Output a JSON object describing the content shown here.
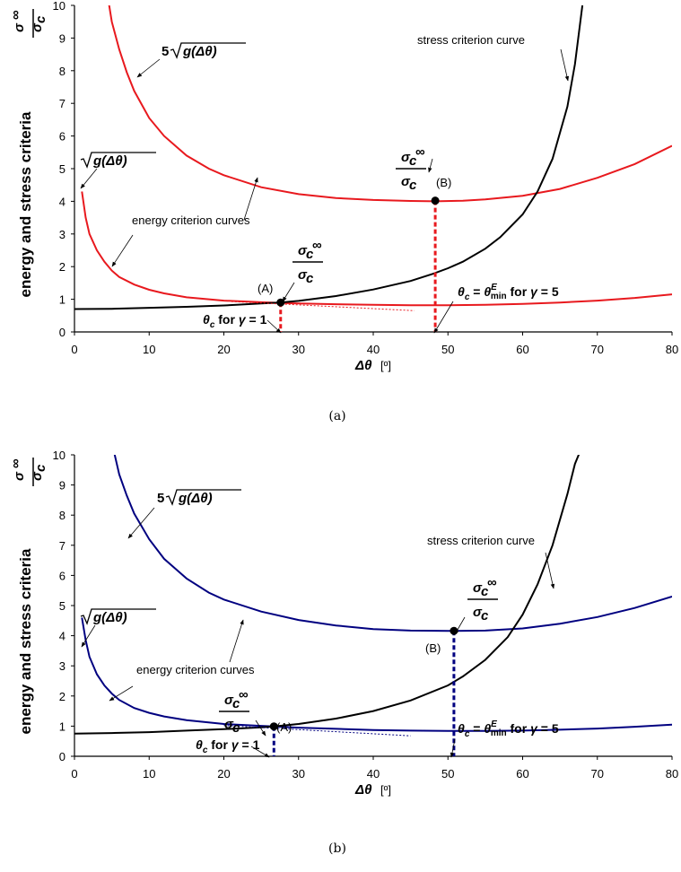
{
  "chart_data": [
    {
      "id": "a",
      "type": "line",
      "caption": "(a)",
      "xlabel": "Δθ",
      "xlabel_unit": "[º]",
      "ylabel": "energy and stress criteria",
      "ylabel_fraction": {
        "numerator": "σ",
        "denominator": "σc",
        "superscript": "∞"
      },
      "xlim": [
        0,
        80
      ],
      "ylim": [
        0,
        10
      ],
      "xticks": [
        0,
        10,
        20,
        30,
        40,
        50,
        60,
        70,
        80
      ],
      "yticks": [
        0,
        1,
        2,
        3,
        4,
        5,
        6,
        7,
        8,
        9,
        10
      ],
      "grid": false,
      "colors": {
        "energy": "#e8191e",
        "stress": "#000000",
        "dropline": "#e8191e"
      },
      "series": [
        {
          "key": "energy_high",
          "x": [
            4.5,
            5,
            6,
            7,
            8,
            10,
            12,
            15,
            18,
            20,
            25,
            30,
            35,
            40,
            45,
            48.3,
            52,
            55,
            60,
            65,
            70,
            75,
            80
          ],
          "y": [
            10.2,
            9.5,
            8.65,
            7.95,
            7.38,
            6.55,
            6.0,
            5.4,
            5.0,
            4.8,
            4.43,
            4.22,
            4.1,
            4.04,
            4.01,
            4.0,
            4.02,
            4.06,
            4.17,
            4.38,
            4.72,
            5.14,
            5.7
          ]
        },
        {
          "key": "energy_low",
          "x": [
            1,
            1.5,
            2,
            3,
            4,
            5,
            6,
            8,
            10,
            12,
            15,
            20,
            25,
            27.5,
            30,
            35,
            40,
            45,
            50,
            55,
            60,
            65,
            70,
            75,
            80
          ],
          "y": [
            4.3,
            3.5,
            3.0,
            2.5,
            2.15,
            1.88,
            1.68,
            1.45,
            1.29,
            1.18,
            1.06,
            0.96,
            0.91,
            0.89,
            0.87,
            0.85,
            0.83,
            0.82,
            0.82,
            0.83,
            0.86,
            0.9,
            0.96,
            1.04,
            1.15
          ]
        },
        {
          "key": "stress",
          "x": [
            0,
            5,
            10,
            15,
            20,
            25,
            27.5,
            30,
            35,
            40,
            45,
            48,
            50,
            52,
            55,
            57,
            60,
            62,
            64,
            66,
            67,
            68
          ],
          "y": [
            0.7,
            0.71,
            0.74,
            0.77,
            0.81,
            0.87,
            0.9,
            0.95,
            1.1,
            1.3,
            1.56,
            1.78,
            1.95,
            2.15,
            2.55,
            2.9,
            3.6,
            4.3,
            5.3,
            6.9,
            8.2,
            10
          ]
        },
        {
          "key": "tangent",
          "x": [
            21,
            45.5
          ],
          "y": [
            0.93,
            0.65
          ]
        }
      ],
      "points": [
        {
          "label": "(A)",
          "x": 27.6,
          "y": 0.9
        },
        {
          "label": "(B)",
          "x": 48.3,
          "y": 4.02
        }
      ],
      "annotations": {
        "stress_curve": "stress criterion curve",
        "energy_curves": "energy criterion curves",
        "five_g": "5√g(Δθ)",
        "sqrt_g": "√g(Δθ)",
        "theta_gamma1": "θc for γ = 1",
        "theta_gamma5": "θc = θminE for γ = 5",
        "ratio": "σc∞/σc"
      }
    },
    {
      "id": "b",
      "type": "line",
      "caption": "(b)",
      "xlabel": "Δθ",
      "xlabel_unit": "[º]",
      "ylabel": "energy and stress criteria",
      "ylabel_fraction": {
        "numerator": "σ",
        "denominator": "σc",
        "superscript": "∞"
      },
      "xlim": [
        0,
        80
      ],
      "ylim": [
        0,
        10
      ],
      "xticks": [
        0,
        10,
        20,
        30,
        40,
        50,
        60,
        70,
        80
      ],
      "yticks": [
        0,
        1,
        2,
        3,
        4,
        5,
        6,
        7,
        8,
        9,
        10
      ],
      "grid": false,
      "colors": {
        "energy": "#000080",
        "stress": "#000000",
        "dropline": "#000080"
      },
      "series": [
        {
          "key": "energy_high",
          "x": [
            5.2,
            6,
            7,
            8,
            10,
            12,
            15,
            18,
            20,
            25,
            30,
            35,
            40,
            45,
            50,
            51,
            55,
            60,
            65,
            70,
            75,
            80
          ],
          "y": [
            10.2,
            9.35,
            8.65,
            8.05,
            7.2,
            6.55,
            5.9,
            5.43,
            5.2,
            4.8,
            4.52,
            4.34,
            4.22,
            4.17,
            4.16,
            4.16,
            4.17,
            4.24,
            4.4,
            4.62,
            4.92,
            5.3
          ]
        },
        {
          "key": "energy_low",
          "x": [
            1,
            1.5,
            2,
            3,
            4,
            5,
            6,
            8,
            10,
            12,
            15,
            20,
            25,
            26.7,
            30,
            35,
            40,
            45,
            50,
            55,
            60,
            65,
            70,
            75,
            80
          ],
          "y": [
            4.6,
            3.85,
            3.3,
            2.72,
            2.35,
            2.08,
            1.87,
            1.6,
            1.44,
            1.32,
            1.2,
            1.07,
            1.01,
            0.99,
            0.95,
            0.91,
            0.87,
            0.85,
            0.84,
            0.84,
            0.85,
            0.88,
            0.92,
            0.98,
            1.05
          ]
        },
        {
          "key": "stress",
          "x": [
            0,
            5,
            10,
            15,
            20,
            25,
            26.7,
            30,
            35,
            40,
            45,
            50,
            52,
            55,
            58,
            60,
            62,
            64,
            66,
            67,
            68
          ],
          "y": [
            0.75,
            0.77,
            0.8,
            0.85,
            0.9,
            0.96,
            0.99,
            1.07,
            1.25,
            1.5,
            1.85,
            2.35,
            2.65,
            3.2,
            3.95,
            4.7,
            5.7,
            7.0,
            8.7,
            9.7,
            10.3
          ]
        },
        {
          "key": "tangent",
          "x": [
            20,
            45
          ],
          "y": [
            1.02,
            0.68
          ]
        }
      ],
      "points": [
        {
          "label": "(A)",
          "x": 26.7,
          "y": 0.99
        },
        {
          "label": "(B)",
          "x": 50.8,
          "y": 4.16
        }
      ],
      "annotations": {
        "stress_curve": "stress criterion curve",
        "energy_curves": "energy criterion curves",
        "five_g": "5√g(Δθ)",
        "sqrt_g": "√g(Δθ)",
        "theta_gamma1": "θc for γ = 1",
        "theta_gamma5": "θc = θminE for γ = 5",
        "ratio": "σc∞/σc"
      }
    }
  ]
}
